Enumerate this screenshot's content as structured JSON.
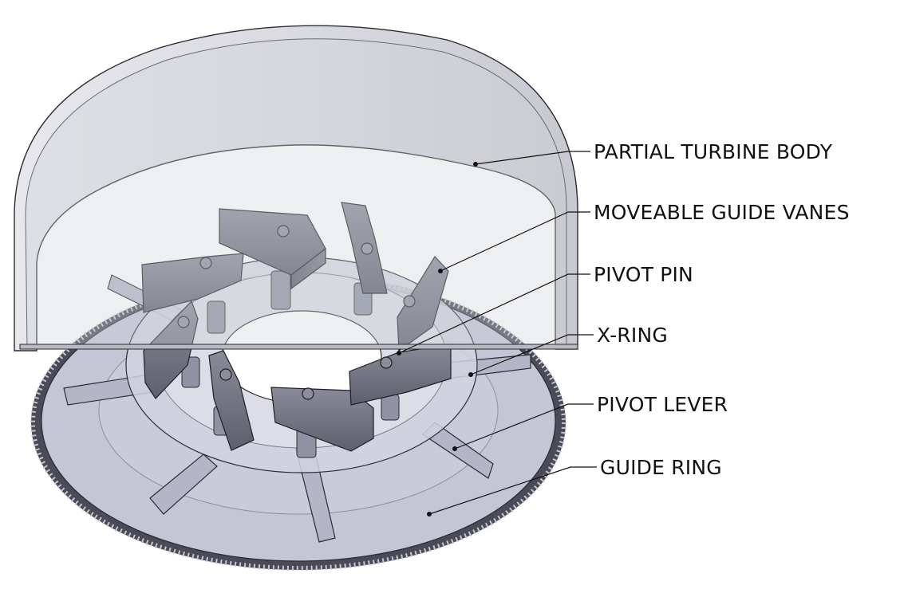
{
  "labels": {
    "turbine_body": "PARTIAL TURBINE BODY",
    "guide_vanes": "MOVEABLE GUIDE VANES",
    "pivot_pin": "PIVOT PIN",
    "x_ring": "X-RING",
    "pivot_lever": "PIVOT LEVER",
    "guide_ring": "GUIDE RING"
  },
  "colors": {
    "body_fill": "#d9dae1",
    "ring_fill": "#c4c6d6",
    "vane_fill": "#6e6f7e",
    "gear_teeth": "#4a4b57",
    "outline": "#2a2a33"
  }
}
